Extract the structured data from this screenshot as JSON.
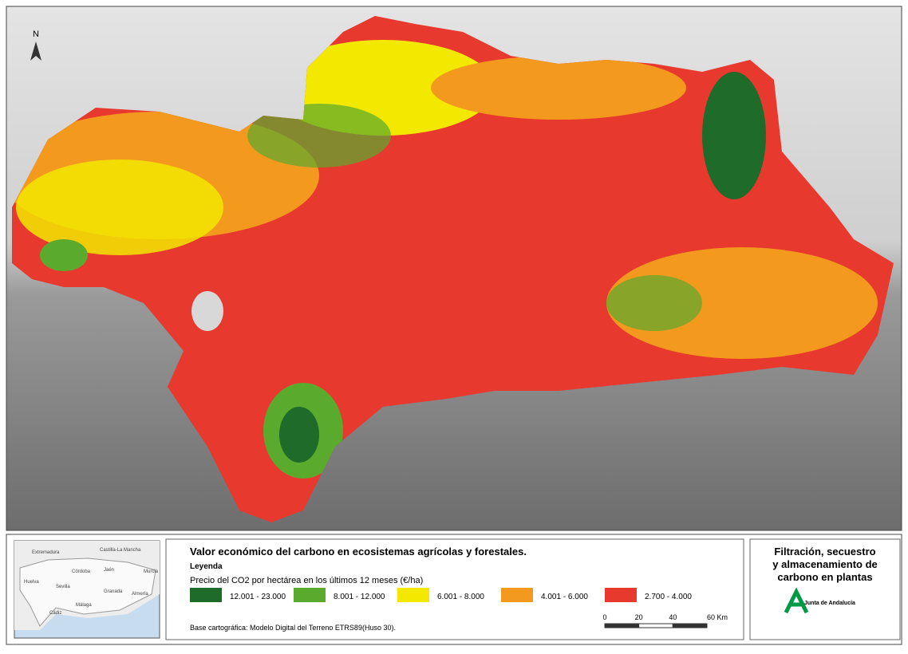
{
  "map": {
    "north_label": "N"
  },
  "inset": {
    "labels": [
      "Extremadura",
      "Castilla-La Mancha",
      "Córdoba",
      "Jaén",
      "Huelva",
      "Sevilla",
      "Granada",
      "Murcia",
      "Almería",
      "Málaga",
      "Cádiz"
    ]
  },
  "legend_panel": {
    "title": "Valor económico del carbono en ecosistemas agrícolas y forestales.",
    "legend_heading": "Leyenda",
    "legend_subtitle": "Precio del CO2 por hectárea en los últimos 12 meses (€/ha)",
    "items": [
      {
        "label": "12.001 - 23.000",
        "color": "#1e6b2a"
      },
      {
        "label": "8.001 - 12.000",
        "color": "#5aaa2e"
      },
      {
        "label": "6.001 - 8.000",
        "color": "#f2e800"
      },
      {
        "label": "4.001 - 6.000",
        "color": "#f39a1e"
      },
      {
        "label": "2.700 - 4.000",
        "color": "#e8392f"
      }
    ],
    "source": "Base cartográfica: Modelo Digital del Terreno ETRS89(Huso 30).",
    "scale_labels": [
      "0",
      "20",
      "40",
      "60 Km"
    ]
  },
  "brand_panel": {
    "heading": "Filtración, secuestro y almacenamiento de carbono en plantas",
    "logo_text": "Junta de Andalucía"
  }
}
